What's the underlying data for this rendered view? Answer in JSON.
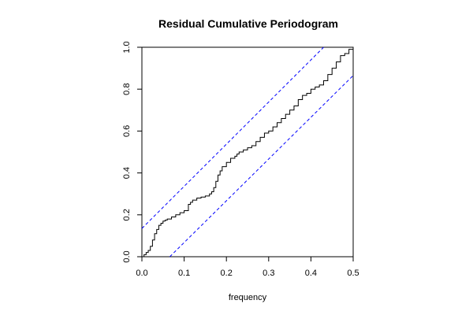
{
  "chart_data": {
    "type": "line",
    "title": "Residual Cumulative Periodogram",
    "xlabel": "frequency",
    "ylabel": "",
    "xlim": [
      0.0,
      0.5
    ],
    "ylim": [
      0.0,
      1.0
    ],
    "x_ticks": [
      "0.0",
      "0.1",
      "0.2",
      "0.3",
      "0.4",
      "0.5"
    ],
    "y_ticks": [
      "0.0",
      "0.2",
      "0.4",
      "0.6",
      "0.8",
      "1.0"
    ],
    "grid": false,
    "series": [
      {
        "style": "step",
        "color": "#000000",
        "x": [
          0.0,
          0.005,
          0.01,
          0.015,
          0.02,
          0.025,
          0.03,
          0.035,
          0.04,
          0.045,
          0.05,
          0.055,
          0.06,
          0.07,
          0.08,
          0.09,
          0.1,
          0.11,
          0.115,
          0.12,
          0.13,
          0.14,
          0.15,
          0.16,
          0.165,
          0.17,
          0.175,
          0.18,
          0.185,
          0.19,
          0.2,
          0.21,
          0.22,
          0.225,
          0.23,
          0.24,
          0.25,
          0.26,
          0.27,
          0.28,
          0.29,
          0.3,
          0.31,
          0.32,
          0.33,
          0.34,
          0.35,
          0.36,
          0.37,
          0.38,
          0.39,
          0.4,
          0.41,
          0.42,
          0.43,
          0.44,
          0.45,
          0.46,
          0.47,
          0.48,
          0.49,
          0.5
        ],
        "values": [
          0.0,
          0.01,
          0.02,
          0.03,
          0.05,
          0.08,
          0.11,
          0.13,
          0.15,
          0.16,
          0.17,
          0.175,
          0.18,
          0.19,
          0.2,
          0.21,
          0.22,
          0.25,
          0.26,
          0.27,
          0.28,
          0.285,
          0.29,
          0.3,
          0.31,
          0.33,
          0.36,
          0.39,
          0.41,
          0.43,
          0.45,
          0.47,
          0.48,
          0.49,
          0.5,
          0.51,
          0.52,
          0.53,
          0.55,
          0.57,
          0.59,
          0.6,
          0.62,
          0.64,
          0.66,
          0.68,
          0.7,
          0.72,
          0.75,
          0.77,
          0.78,
          0.8,
          0.81,
          0.82,
          0.84,
          0.87,
          0.9,
          0.93,
          0.96,
          0.97,
          0.99,
          1.0
        ]
      },
      {
        "style": "dashed",
        "color": "#0000ff",
        "x": [
          0.0,
          0.43
        ],
        "values": [
          0.135,
          1.0
        ]
      },
      {
        "style": "dashed",
        "color": "#0000ff",
        "x": [
          0.066,
          0.5
        ],
        "values": [
          0.0,
          0.865
        ]
      }
    ]
  }
}
